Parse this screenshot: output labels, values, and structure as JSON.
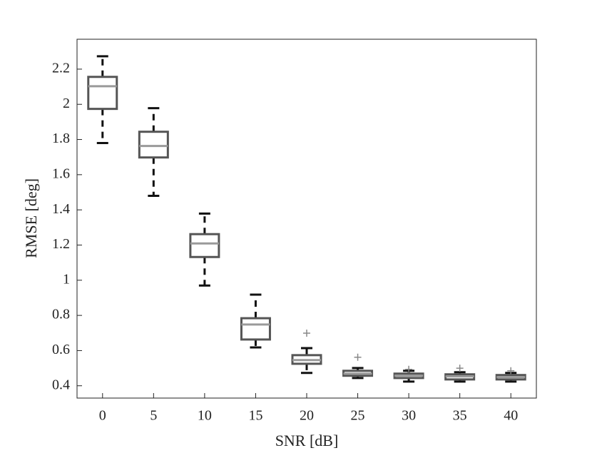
{
  "chart_data": {
    "type": "box",
    "xlabel": "SNR [dB]",
    "ylabel": "RMSE [deg]",
    "categories": [
      "0",
      "5",
      "10",
      "15",
      "20",
      "25",
      "30",
      "35",
      "40"
    ],
    "boxes": [
      {
        "min": 1.78,
        "q1": 1.974,
        "median": 2.103,
        "q3": 2.156,
        "max": 2.273,
        "outliers": []
      },
      {
        "min": 1.48,
        "q1": 1.698,
        "median": 1.763,
        "q3": 1.844,
        "max": 1.978,
        "outliers": []
      },
      {
        "min": 0.97,
        "q1": 1.132,
        "median": 1.209,
        "q3": 1.262,
        "max": 1.379,
        "outliers": []
      },
      {
        "min": 0.618,
        "q1": 0.663,
        "median": 0.748,
        "q3": 0.784,
        "max": 0.918,
        "outliers": []
      },
      {
        "min": 0.473,
        "q1": 0.525,
        "median": 0.546,
        "q3": 0.574,
        "max": 0.614,
        "outliers": [
          0.699
        ]
      },
      {
        "min": 0.444,
        "q1": 0.457,
        "median": 0.469,
        "q3": 0.485,
        "max": 0.501,
        "outliers": [
          0.562
        ]
      },
      {
        "min": 0.424,
        "q1": 0.444,
        "median": 0.457,
        "q3": 0.469,
        "max": 0.485,
        "outliers": [
          0.493
        ]
      },
      {
        "min": 0.424,
        "q1": 0.436,
        "median": 0.453,
        "q3": 0.465,
        "max": 0.477,
        "outliers": [
          0.5
        ]
      },
      {
        "min": 0.424,
        "q1": 0.436,
        "median": 0.449,
        "q3": 0.461,
        "max": 0.473,
        "outliers": [
          0.485
        ]
      }
    ],
    "box_color": "#555555",
    "median_color": "#9a9a9a",
    "whisker_color": "#111111",
    "outlier_color": "#888888",
    "ylim": [
      0.33,
      2.37
    ],
    "yticks": [
      0.4,
      0.6,
      0.8,
      1,
      1.2,
      1.4,
      1.6,
      1.8,
      2,
      2.2
    ],
    "grid": false
  }
}
